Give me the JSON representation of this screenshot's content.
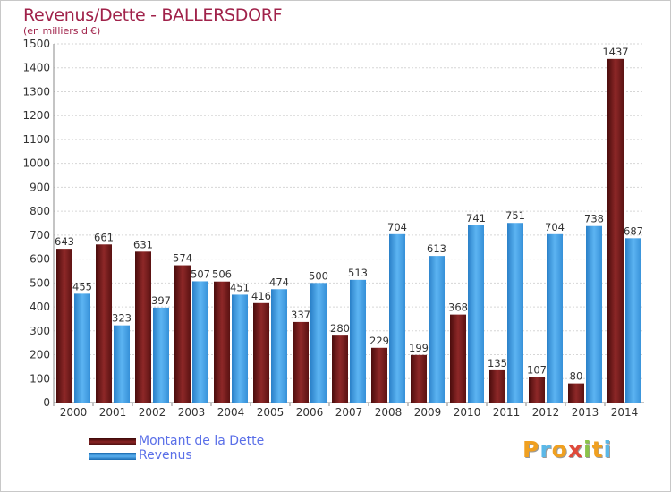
{
  "chart_data": {
    "type": "bar",
    "title": "Revenus/Dette - BALLERSDORF",
    "subtitle": "(en milliers d'€)",
    "xlabel": "",
    "ylabel": "",
    "ylim": [
      0,
      1500
    ],
    "yticks": [
      0,
      100,
      200,
      300,
      400,
      500,
      600,
      700,
      800,
      900,
      1000,
      1100,
      1200,
      1300,
      1400,
      1500
    ],
    "grid": true,
    "categories": [
      "2000",
      "2001",
      "2002",
      "2003",
      "2004",
      "2005",
      "2006",
      "2007",
      "2008",
      "2009",
      "2010",
      "2011",
      "2012",
      "2013",
      "2014"
    ],
    "series": [
      {
        "name": "Montant de la Dette",
        "color": "#7a1c1c",
        "values": [
          643,
          661,
          631,
          574,
          506,
          416,
          337,
          280,
          229,
          199,
          368,
          135,
          107,
          80,
          1437
        ]
      },
      {
        "name": "Revenus",
        "color": "#3d9be0",
        "values": [
          455,
          323,
          397,
          507,
          451,
          474,
          500,
          513,
          704,
          613,
          741,
          751,
          704,
          738,
          687
        ]
      }
    ],
    "legend_position": "bottom-left"
  },
  "legend": {
    "items": [
      {
        "label": "Montant de la Dette",
        "color": "#7a1c1c"
      },
      {
        "label": "Revenus",
        "color": "#3d9be0"
      }
    ]
  },
  "logo": {
    "letters": [
      "P",
      "r",
      "o",
      "x",
      "i",
      "t",
      "i"
    ],
    "colors": [
      "#f0a020",
      "#5bb8e8",
      "#f0a020",
      "#e04a3a",
      "#8bc34a",
      "#f0a020",
      "#5bb8e8"
    ]
  }
}
